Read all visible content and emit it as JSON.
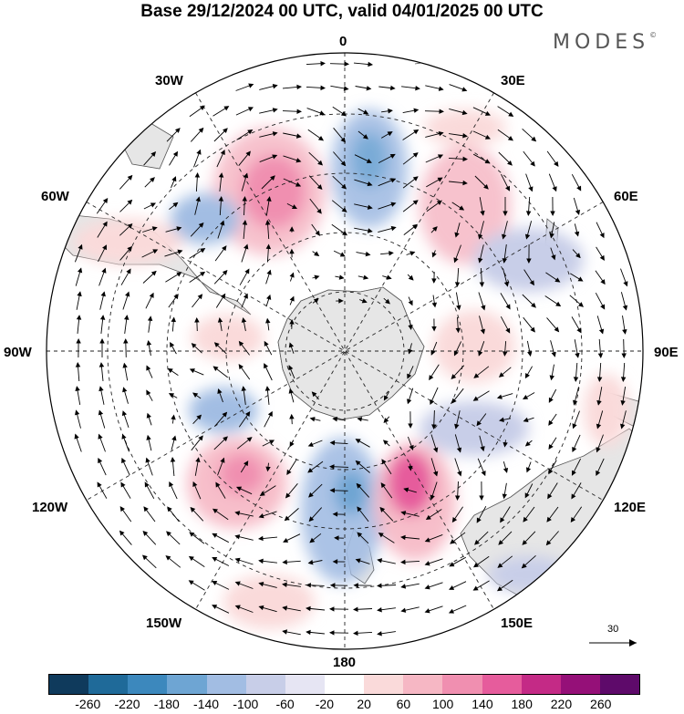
{
  "title": "Base 29/12/2024 00 UTC, valid 04/01/2025 00 UTC",
  "logo": "MODES",
  "logo_mark": "©",
  "map": {
    "projection": "south-polar-stereographic",
    "longitude_labels": {
      "n0": "0",
      "n30e": "30E",
      "n60e": "60E",
      "n90e": "90E",
      "n120e": "120E",
      "n150e": "150E",
      "n180": "180",
      "n150w": "150W",
      "n120w": "120W",
      "n90w": "90W",
      "n60w": "60W",
      "n30w": "30W"
    },
    "anomaly_centers": [
      {
        "lon_label": "30W",
        "sign": "positive",
        "strength": 140
      },
      {
        "lon_label": "0",
        "sign": "negative",
        "strength": -100
      },
      {
        "lon_label": "30E",
        "sign": "positive",
        "strength": 100
      },
      {
        "lon_label": "60W",
        "sign": "negative",
        "strength": -140
      },
      {
        "lon_label": "60E",
        "sign": "negative",
        "strength": -60
      },
      {
        "lon_label": "120W",
        "sign": "positive",
        "strength": 140
      },
      {
        "lon_label": "180",
        "sign": "negative",
        "strength": -140
      },
      {
        "lon_label": "150E",
        "sign": "positive",
        "strength": 220
      }
    ]
  },
  "reference_vector": {
    "value": "30"
  },
  "colorbar": {
    "colors": [
      "#0f3a5c",
      "#1f6a99",
      "#3c88bd",
      "#6ea5d3",
      "#a2bde3",
      "#c8cee8",
      "#e6e5f3",
      "#ffffff",
      "#fadada",
      "#f6b7c4",
      "#f08fb0",
      "#e65c9c",
      "#c42a86",
      "#951078",
      "#5e0a6a"
    ],
    "labels": [
      "-260",
      "-220",
      "-180",
      "-140",
      "-100",
      "-60",
      "-20",
      "20",
      "60",
      "100",
      "140",
      "180",
      "220",
      "260"
    ]
  }
}
